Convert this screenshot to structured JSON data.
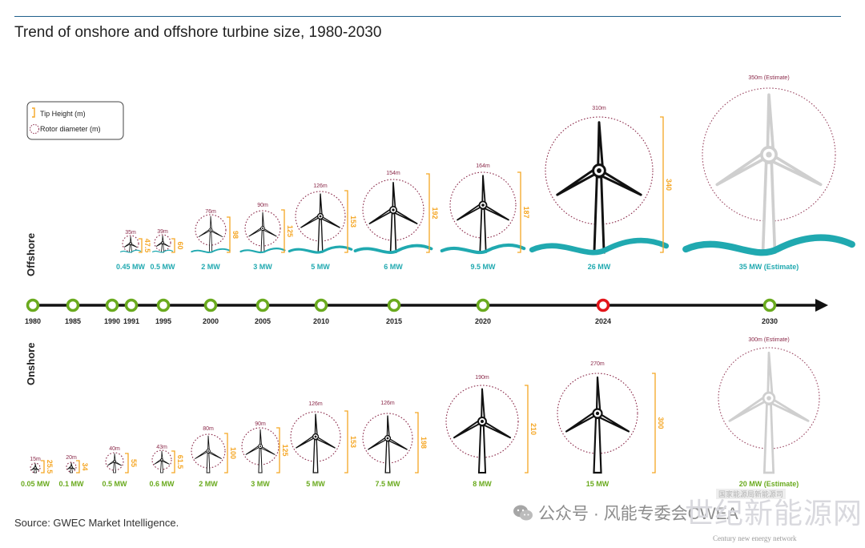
{
  "title": "Trend of onshore and offshore turbine size, 1980-2030",
  "source": "Source: GWEC Market Intelligence.",
  "legend": {
    "tip_height": "Tip Height (m)",
    "rotor_diameter": "Rotor diameter (m)"
  },
  "section_labels": {
    "offshore": "Offshore",
    "onshore": "Onshore"
  },
  "colors": {
    "accent": "#f5a623",
    "rotor": "#8b2a4a",
    "offshore_mw": "#20a9b0",
    "onshore_mw": "#6aaa1e",
    "timeline_dot": "#6aaa1e",
    "highlight_dot": "#e3151a",
    "turbine": "#111111",
    "estimate": "#cfcfcf"
  },
  "timeline": {
    "years": [
      "1980",
      "1985",
      "1990",
      "1991",
      "1995",
      "2000",
      "2005",
      "2010",
      "2015",
      "2020",
      "2024",
      "2030"
    ],
    "highlight": "2024"
  },
  "chart_data": {
    "type": "diagram",
    "offshore": [
      {
        "year": "1991",
        "rotor": "35m",
        "rotor_m": 35,
        "tip": "47.5",
        "tip_m": 47.5,
        "capacity": "0.45 MW"
      },
      {
        "year": "1995",
        "rotor": "39m",
        "rotor_m": 39,
        "tip": "60",
        "tip_m": 60,
        "capacity": "0.5 MW"
      },
      {
        "year": "2000",
        "rotor": "76m",
        "rotor_m": 76,
        "tip": "98",
        "tip_m": 98,
        "capacity": "2 MW"
      },
      {
        "year": "2005",
        "rotor": "90m",
        "rotor_m": 90,
        "tip": "125",
        "tip_m": 125,
        "capacity": "3 MW"
      },
      {
        "year": "2010",
        "rotor": "126m",
        "rotor_m": 126,
        "tip": "153",
        "tip_m": 153,
        "capacity": "5 MW"
      },
      {
        "year": "2015",
        "rotor": "154m",
        "rotor_m": 154,
        "tip": "192",
        "tip_m": 192,
        "capacity": "6 MW"
      },
      {
        "year": "2020",
        "rotor": "164m",
        "rotor_m": 164,
        "tip": "187",
        "tip_m": 187,
        "capacity": "9.5 MW"
      },
      {
        "year": "2024",
        "rotor": "310m",
        "rotor_m": 310,
        "tip": "340",
        "tip_m": 340,
        "capacity": "26 MW"
      },
      {
        "year": "2030",
        "rotor": "350m (Estimate)",
        "rotor_m": 350,
        "tip": "",
        "tip_m": null,
        "capacity": "35 MW (Estimate)",
        "estimate": true
      }
    ],
    "onshore": [
      {
        "year": "1980",
        "rotor": "15m",
        "rotor_m": 15,
        "tip": "25.5",
        "tip_m": 25.5,
        "capacity": "0.05 MW"
      },
      {
        "year": "1985",
        "rotor": "20m",
        "rotor_m": 20,
        "tip": "34",
        "tip_m": 34,
        "capacity": "0.1 MW"
      },
      {
        "year": "1990",
        "rotor": "40m",
        "rotor_m": 40,
        "tip": "55",
        "tip_m": 55,
        "capacity": "0.5 MW"
      },
      {
        "year": "1995",
        "rotor": "43m",
        "rotor_m": 43,
        "tip": "61.5",
        "tip_m": 61.5,
        "capacity": "0.6 MW"
      },
      {
        "year": "2000",
        "rotor": "80m",
        "rotor_m": 80,
        "tip": "100",
        "tip_m": 100,
        "capacity": "2 MW"
      },
      {
        "year": "2005",
        "rotor": "90m",
        "rotor_m": 90,
        "tip": "125",
        "tip_m": 125,
        "capacity": "3 MW"
      },
      {
        "year": "2010",
        "rotor": "126m",
        "rotor_m": 126,
        "tip": "153",
        "tip_m": 153,
        "capacity": "5 MW"
      },
      {
        "year": "2015",
        "rotor": "126m",
        "rotor_m": 126,
        "tip": "198",
        "tip_m": 198,
        "capacity": "7.5 MW"
      },
      {
        "year": "2020",
        "rotor": "190m",
        "rotor_m": 190,
        "tip": "210",
        "tip_m": 210,
        "capacity": "8 MW"
      },
      {
        "year": "2024",
        "rotor": "270m",
        "rotor_m": 270,
        "tip": "300",
        "tip_m": 300,
        "capacity": "15 MW"
      },
      {
        "year": "2030",
        "rotor": "300m (Estimate)",
        "rotor_m": 300,
        "tip": "",
        "tip_m": null,
        "capacity": "20 MW (Estimate)",
        "estimate": true
      }
    ]
  },
  "watermark": {
    "wechat": "公众号 · 风能专委会CWEA",
    "logo": "世纪新能源网",
    "logo_en": "Century new energy network",
    "small": "国家能源局新能源司"
  }
}
